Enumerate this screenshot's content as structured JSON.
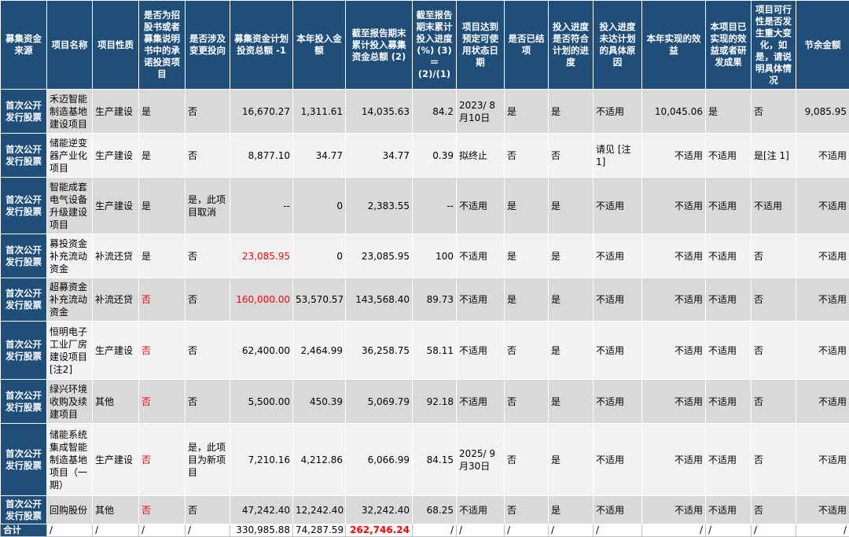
{
  "headers": [
    "募集资金来源",
    "项目名称",
    "项目性质",
    "是否为招股书或者募集说明书中的承诺投资项目",
    "是否涉及变更投向",
    "募集资金计划投资总额 -1",
    "本年投入金额",
    "截至报告期末累计投入募集资金总额 (2)",
    "截至报告期末累计投入进度 (%) (3)＝(2)/(1)",
    "项目达到预定可使用状态日期",
    "是否已结项",
    "投入进度是否符合计划的进度",
    "投入进度未达计划的具体原因",
    "本年实现的效益",
    "本项目已实现的效益或者研发成果",
    "项目可行性是否发生重大变化，如是，请说明具体情况",
    "节余金额"
  ],
  "rows": [
    [
      "首次公开发行股票",
      "禾迈智能制造基地建设项目",
      "生产建设",
      "是",
      "否",
      "16,670.27",
      "1,311.61",
      "14,035.63",
      "84.2",
      "2023/ 8月10日",
      "是",
      "是",
      "不适用",
      "10,045.06",
      "是",
      "否",
      "9,085.95"
    ],
    [
      "首次公开发行股票",
      "储能逆变器产业化项目",
      "生产建设",
      "是",
      "否",
      "8,877.10",
      "34.77",
      "34.77",
      "0.39",
      "拟终止",
      "否",
      "否",
      "请见 [注1]",
      "不适用",
      "不适用",
      "是[注 1]",
      "不适用"
    ],
    [
      "首次公开发行股票",
      "智能成套电气设备升级建设项目",
      "生产建设",
      "是",
      "是，此项目取消",
      "--",
      "0",
      "2,383.55",
      "--",
      "不适用",
      "是",
      "是",
      "不适用",
      "不适用",
      "不适用",
      "不适用",
      "不适用"
    ],
    [
      "首次公开发行股票",
      "募投资金补充流动资金",
      "补流还贷",
      "是",
      "否",
      "23,085.95",
      "0",
      "23,085.95",
      "100",
      "不适用",
      "是",
      "是",
      "不适用",
      "不适用",
      "不适用",
      "否",
      "不适用"
    ],
    [
      "首次公开发行股票",
      "超募资金补充流动资金",
      "补流还贷",
      "否",
      "否",
      "160,000.00",
      "53,570.57",
      "143,568.40",
      "89.73",
      "不适用",
      "是",
      "是",
      "不适用",
      "不适用",
      "不适用",
      "否",
      "不适用"
    ],
    [
      "首次公开发行股票",
      "恒明电子工业厂房建设项目[注2]",
      "生产建设",
      "否",
      "否",
      "62,400.00",
      "2,464.99",
      "36,258.75",
      "58.11",
      "不适用",
      "否",
      "是",
      "不适用",
      "不适用",
      "不适用",
      "否",
      "不适用"
    ],
    [
      "首次公开发行股票",
      "绿兴环境收购及续建项目",
      "其他",
      "否",
      "否",
      "5,500.00",
      "450.39",
      "5,069.79",
      "92.18",
      "不适用",
      "否",
      "是",
      "不适用",
      "不适用",
      "不适用",
      "否",
      "不适用"
    ],
    [
      "首次公开发行股票",
      "储能系统集成智能制造基地项目（一期）",
      "生产建设",
      "否",
      "是，此项目为新项目",
      "7,210.16",
      "4,212.86",
      "6,066.99",
      "84.15",
      "2025/ 9月30日",
      "否",
      "是",
      "不适用",
      "不适用",
      "不适用",
      "否",
      "不适用"
    ],
    [
      "首次公开发行股票",
      "回购股份",
      "其他",
      "否",
      "否",
      "47,242.40",
      "12,242.40",
      "32,242.40",
      "68.25",
      "不适用",
      "否",
      "是",
      "不适用",
      "不适用",
      "不适用",
      "否",
      "不适用"
    ]
  ],
  "total": [
    "合计",
    "/",
    "/",
    "/",
    "/",
    "330,985.88",
    "74,287.59",
    "262,746.24",
    "/",
    "/",
    "/",
    "/",
    "/",
    "/",
    "/",
    "/",
    "/"
  ],
  "colors": {
    "header_bg": "#1f4e79",
    "row_a": "#d9d9d9",
    "row_b": "#f2f2f2",
    "highlight": "#ff0000"
  }
}
